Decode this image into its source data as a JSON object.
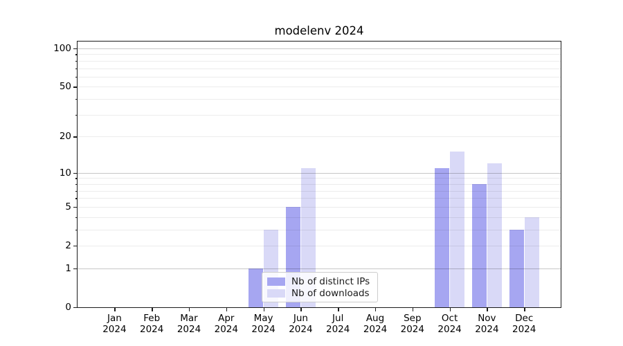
{
  "chart_data": {
    "type": "bar",
    "title": "modelenv 2024",
    "categories": [
      "Jan",
      "Feb",
      "Mar",
      "Apr",
      "May",
      "Jun",
      "Jul",
      "Aug",
      "Sep",
      "Oct",
      "Nov",
      "Dec"
    ],
    "x_year": "2024",
    "series": [
      {
        "name": "Nb of distinct IPs",
        "color": "#a6a6f1",
        "values": [
          0,
          0,
          0,
          0,
          1,
          5,
          0,
          0,
          0,
          11,
          8,
          3
        ]
      },
      {
        "name": "Nb of downloads",
        "color": "#d9d9f7",
        "values": [
          0,
          0,
          0,
          0,
          3,
          11,
          0,
          0,
          0,
          15,
          12,
          4
        ]
      }
    ],
    "yscale": "log1p",
    "ylim": [
      0,
      113
    ],
    "yticks": [
      0,
      1,
      2,
      5,
      10,
      20,
      50,
      100
    ],
    "grid": {
      "major": [
        1,
        10,
        100
      ],
      "minor": [
        2,
        3,
        4,
        5,
        6,
        7,
        8,
        9,
        20,
        30,
        40,
        50,
        60,
        70,
        80,
        90
      ]
    },
    "legend_position": "lower center",
    "colors": {
      "background": "#ffffff",
      "axis": "#1a1a1a",
      "grid_major": "#c8c8c8",
      "grid_minor": "#ececec"
    }
  }
}
